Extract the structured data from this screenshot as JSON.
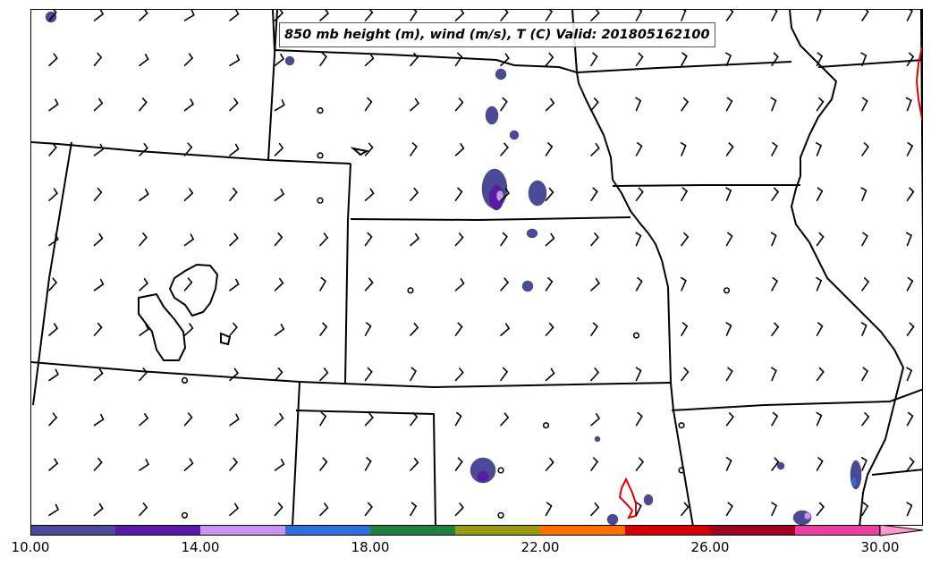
{
  "map": {
    "title": "850 mb height (m), wind (m/s), T (C) Valid: 201805162100",
    "region": "Central United States",
    "basemap": "state-boundaries",
    "wind_symbol": "wind-barb",
    "calm_symbol": "calm-circle",
    "temperature_contour_color": "#e00000"
  },
  "colorbar": {
    "orientation": "horizontal",
    "extend": "max",
    "min": 10,
    "max": 31,
    "colors": [
      "#4a4a9a",
      "#5a1aa8",
      "#c894f0",
      "#2e6fdc",
      "#1f8040",
      "#9a9a10",
      "#ff7000",
      "#d00000",
      "#a00020",
      "#e83fa0"
    ],
    "extend_color": "#ff9ad0",
    "tick_values": [
      10,
      14,
      18,
      22,
      26,
      30
    ],
    "tick_labels": [
      "10.00",
      "14.00",
      "18.00",
      "22.00",
      "26.00",
      "30.00"
    ]
  }
}
